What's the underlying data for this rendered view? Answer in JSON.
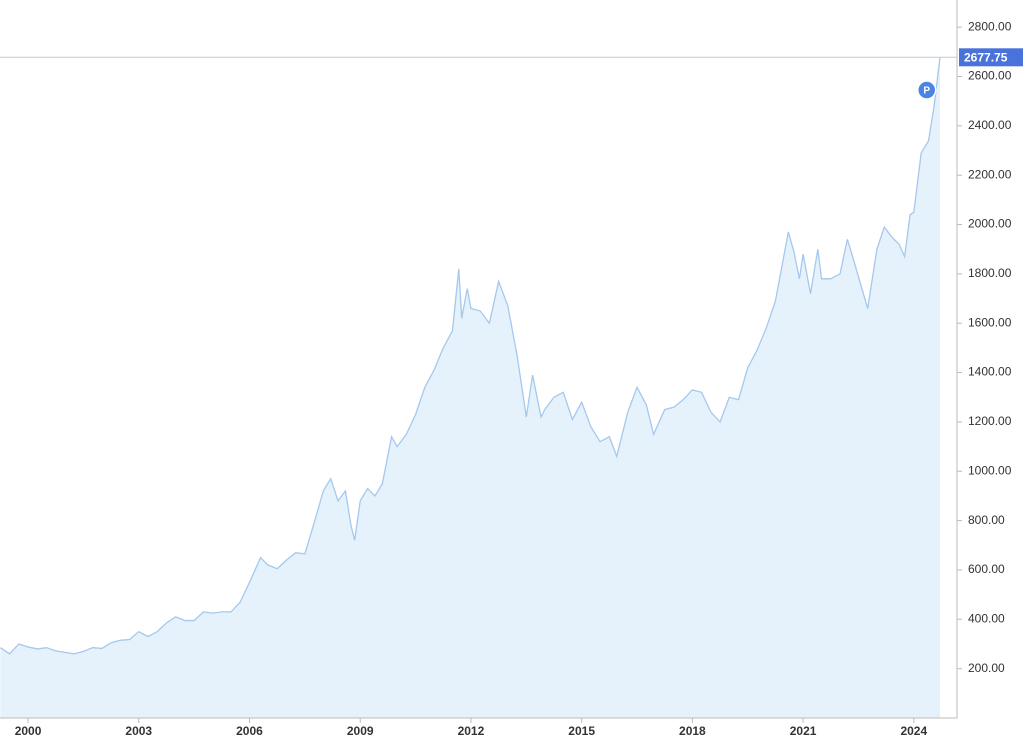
{
  "chart_data": {
    "type": "area",
    "x": [
      1999.25,
      1999.5,
      1999.75,
      2000.0,
      2000.25,
      2000.5,
      2000.75,
      2001.0,
      2001.25,
      2001.5,
      2001.75,
      2002.0,
      2002.25,
      2002.5,
      2002.75,
      2003.0,
      2003.25,
      2003.5,
      2003.75,
      2004.0,
      2004.25,
      2004.5,
      2004.75,
      2005.0,
      2005.25,
      2005.5,
      2005.75,
      2006.0,
      2006.3,
      2006.5,
      2006.75,
      2007.0,
      2007.25,
      2007.5,
      2007.75,
      2008.0,
      2008.2,
      2008.4,
      2008.6,
      2008.75,
      2008.85,
      2009.0,
      2009.2,
      2009.4,
      2009.6,
      2009.85,
      2010.0,
      2010.25,
      2010.5,
      2010.75,
      2011.0,
      2011.25,
      2011.5,
      2011.67,
      2011.75,
      2011.9,
      2012.0,
      2012.25,
      2012.5,
      2012.75,
      2013.0,
      2013.25,
      2013.5,
      2013.67,
      2013.9,
      2014.0,
      2014.25,
      2014.5,
      2014.75,
      2015.0,
      2015.25,
      2015.5,
      2015.75,
      2015.95,
      2016.25,
      2016.5,
      2016.75,
      2016.95,
      2017.25,
      2017.5,
      2017.75,
      2018.0,
      2018.25,
      2018.5,
      2018.75,
      2019.0,
      2019.25,
      2019.5,
      2019.75,
      2020.0,
      2020.25,
      2020.6,
      2020.75,
      2020.9,
      2021.0,
      2021.2,
      2021.4,
      2021.5,
      2021.75,
      2022.0,
      2022.2,
      2022.4,
      2022.75,
      2023.0,
      2023.2,
      2023.4,
      2023.6,
      2023.75,
      2023.9,
      2024.0,
      2024.2,
      2024.4,
      2024.55,
      2024.71
    ],
    "values": [
      285,
      260,
      300,
      288,
      280,
      285,
      272,
      266,
      260,
      270,
      285,
      282,
      305,
      315,
      318,
      350,
      330,
      350,
      385,
      410,
      395,
      395,
      430,
      425,
      430,
      430,
      470,
      550,
      650,
      620,
      605,
      640,
      670,
      665,
      790,
      920,
      970,
      880,
      920,
      780,
      720,
      880,
      930,
      900,
      950,
      1140,
      1100,
      1150,
      1230,
      1340,
      1410,
      1500,
      1570,
      1820,
      1620,
      1740,
      1660,
      1650,
      1600,
      1770,
      1670,
      1470,
      1220,
      1390,
      1220,
      1250,
      1300,
      1320,
      1210,
      1280,
      1180,
      1120,
      1140,
      1060,
      1240,
      1340,
      1270,
      1150,
      1250,
      1260,
      1290,
      1330,
      1320,
      1240,
      1200,
      1300,
      1290,
      1420,
      1490,
      1580,
      1690,
      1970,
      1890,
      1780,
      1880,
      1720,
      1900,
      1780,
      1780,
      1800,
      1940,
      1840,
      1660,
      1900,
      1990,
      1950,
      1920,
      1870,
      2040,
      2050,
      2290,
      2340,
      2480,
      2677.75
    ],
    "color": "#a5c8ee",
    "fill_color": "#e5f2fb",
    "current_value": 2677.75,
    "current_value_color": "#4a72db",
    "annotation": {
      "label": "P",
      "x": 2024.35,
      "y": 2545,
      "color": "#4a84e4"
    },
    "xlim": [
      1999.24,
      2025.17
    ],
    "xticks": [
      2000,
      2003,
      2006,
      2009,
      2012,
      2015,
      2018,
      2021,
      2024
    ],
    "ylim": [
      0,
      2910
    ],
    "yticks": [
      {
        "value": 200,
        "label": "200.00"
      },
      {
        "value": 400,
        "label": "400.00"
      },
      {
        "value": 600,
        "label": "600.00"
      },
      {
        "value": 800,
        "label": "800.00"
      },
      {
        "value": 1000,
        "label": "1000.00"
      },
      {
        "value": 1200,
        "label": "1200.00"
      },
      {
        "value": 1400,
        "label": "1400.00"
      },
      {
        "value": 1600,
        "label": "1600.00"
      },
      {
        "value": 1800,
        "label": "1800.00"
      },
      {
        "value": 2000,
        "label": "2000.00"
      },
      {
        "value": 2200,
        "label": "2200.00"
      },
      {
        "value": 2400,
        "label": "2400.00"
      },
      {
        "value": 2600,
        "label": "2600.00"
      },
      {
        "value": 2800,
        "label": "2800.00"
      }
    ]
  }
}
